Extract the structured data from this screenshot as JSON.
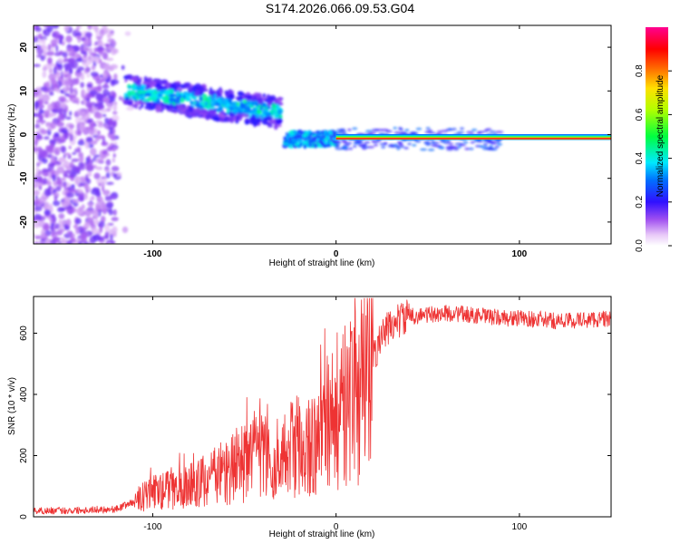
{
  "title": "S174.2026.066.09.53.G04",
  "chart_data": [
    {
      "type": "heatmap",
      "xlabel": "Height of straight line (km)",
      "ylabel": "Frequency (Hz)",
      "xlim": [
        -165,
        150
      ],
      "ylim": [
        -25,
        25
      ],
      "xticks": [
        -100,
        0,
        100
      ],
      "yticks": [
        -20,
        -10,
        0,
        10,
        20
      ],
      "colorbar": {
        "label": "Normalized spectral amplitude",
        "range": [
          0,
          1
        ],
        "ticks": [
          0.0,
          0.2,
          0.4,
          0.6,
          0.8
        ]
      },
      "features": [
        {
          "x_range": [
            -165,
            -120
          ],
          "freq_range": [
            -25,
            25
          ],
          "amplitude": "low, scattered"
        },
        {
          "x_range": [
            -115,
            -30
          ],
          "freq_center_start": 10,
          "freq_center_end": 5,
          "amplitude": 0.4
        },
        {
          "x_range": [
            -28,
            0
          ],
          "freq_center": -1,
          "amplitude": 0.45
        },
        {
          "x_range": [
            0,
            150
          ],
          "freq_center": -1,
          "amplitude": 0.95
        }
      ]
    },
    {
      "type": "line",
      "xlabel": "Height of straight line (km)",
      "ylabel": "SNR (10 * v/v)",
      "xlim": [
        -165,
        150
      ],
      "ylim": [
        0,
        720
      ],
      "xticks": [
        -100,
        0,
        100
      ],
      "yticks": [
        0,
        200,
        400,
        600
      ],
      "color": "#ee3333",
      "x": [
        -165,
        -150,
        -140,
        -130,
        -120,
        -110,
        -100,
        -90,
        -80,
        -70,
        -60,
        -50,
        -40,
        -30,
        -20,
        -15,
        -10,
        -5,
        0,
        5,
        10,
        15,
        20,
        25,
        30,
        35,
        40,
        50,
        60,
        70,
        80,
        90,
        100,
        110,
        120,
        130,
        140,
        150
      ],
      "y": [
        20,
        20,
        22,
        24,
        25,
        50,
        80,
        90,
        100,
        120,
        150,
        180,
        230,
        180,
        260,
        250,
        240,
        300,
        330,
        360,
        380,
        430,
        520,
        590,
        625,
        645,
        655,
        660,
        665,
        662,
        655,
        650,
        648,
        645,
        640,
        642,
        645,
        648
      ]
    }
  ]
}
